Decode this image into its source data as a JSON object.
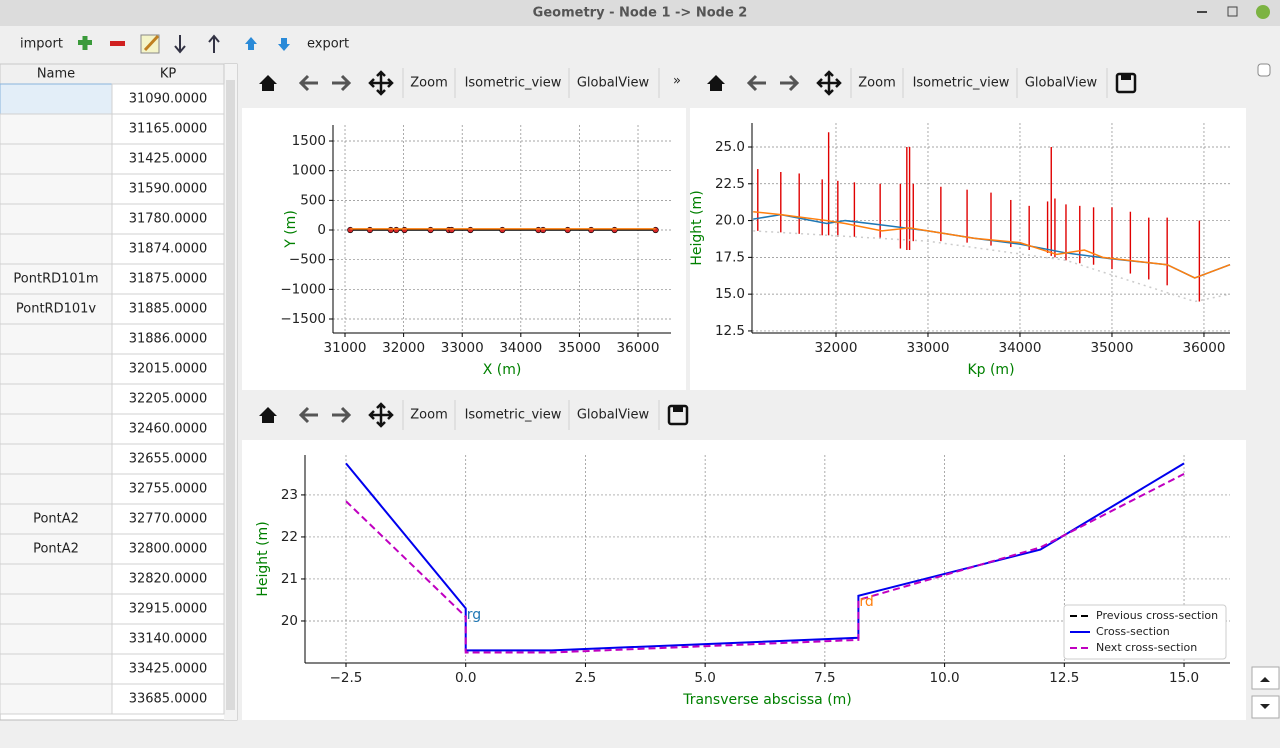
{
  "window": {
    "title": "Geometry - Node 1 -> Node 2"
  },
  "toolbar": {
    "import": "import",
    "export": "export"
  },
  "table": {
    "headers": [
      "Name",
      "KP"
    ],
    "rows": [
      [
        null,
        "31090.0000"
      ],
      [
        null,
        "31165.0000"
      ],
      [
        null,
        "31425.0000"
      ],
      [
        null,
        "31590.0000"
      ],
      [
        null,
        "31780.0000"
      ],
      [
        null,
        "31874.0000"
      ],
      [
        "PontRD101m",
        "31875.0000"
      ],
      [
        "PontRD101v",
        "31885.0000"
      ],
      [
        null,
        "31886.0000"
      ],
      [
        null,
        "32015.0000"
      ],
      [
        null,
        "32205.0000"
      ],
      [
        null,
        "32460.0000"
      ],
      [
        null,
        "32655.0000"
      ],
      [
        null,
        "32755.0000"
      ],
      [
        "PontA2",
        "32770.0000"
      ],
      [
        "PontA2",
        "32800.0000"
      ],
      [
        null,
        "32820.0000"
      ],
      [
        null,
        "32915.0000"
      ],
      [
        null,
        "33140.0000"
      ],
      [
        null,
        "33425.0000"
      ],
      [
        null,
        "33685.0000"
      ]
    ]
  },
  "plot_toolbar": {
    "zoom": "Zoom",
    "isometric_view": "Isometric_view",
    "global_view": "GlobalView",
    "overflow": "»"
  },
  "charts": [
    {
      "type": "line",
      "x_label": "X (m)",
      "y_label": "Y (m)",
      "xlim": [
        30795,
        36563
      ],
      "xticks": [
        31000,
        32000,
        33000,
        34000,
        35000,
        36000
      ],
      "ylim": [
        -1736,
        1770
      ],
      "yticks": [
        {
          "value": -1500,
          "label": "−1500"
        },
        {
          "value": -1000,
          "label": "−1000"
        },
        {
          "value": -500,
          "label": "−500"
        },
        0,
        500,
        1000,
        1500
      ],
      "grid": true,
      "series": [
        {
          "color": "#000000",
          "marker_color": "#d62728",
          "x": [
            31090,
            31425,
            31780,
            31875,
            32015,
            32460,
            32770,
            32820,
            33140,
            33685,
            34300,
            34380,
            34800,
            35200,
            35600,
            36300
          ],
          "values": [
            0,
            0,
            0,
            0,
            0,
            0,
            0,
            0,
            0,
            0,
            0,
            0,
            0,
            0,
            0,
            0
          ]
        },
        {
          "color": "#ff7f0e",
          "x": [
            31090,
            36300
          ],
          "values": [
            20,
            20
          ]
        }
      ]
    },
    {
      "type": "line",
      "x_label": "Kp (m)",
      "y_label": "Height (m)",
      "xlim": [
        31087,
        36283
      ],
      "xticks": [
        32000,
        33000,
        34000,
        35000,
        36000
      ],
      "ylim": [
        12.36,
        26.63
      ],
      "yticks": [
        12.5,
        {
          "value": 15,
          "label": "15.0"
        },
        17.5,
        {
          "value": 20,
          "label": "20.0"
        },
        22.5,
        {
          "value": 25,
          "label": "25.0"
        }
      ],
      "grid": true,
      "series": [
        {
          "color": "#1f77b4",
          "x": [
            31100,
            31400,
            31900,
            32100,
            32500,
            33000,
            33500,
            34000,
            34500,
            35000,
            35600,
            35900,
            36283
          ],
          "values": [
            20.1,
            20.4,
            19.8,
            20.0,
            19.7,
            19.3,
            18.8,
            18.4,
            17.8,
            17.4,
            17.0,
            16.1,
            17.0
          ]
        },
        {
          "color": "#ff7f0e",
          "x": [
            31100,
            31400,
            31900,
            32100,
            32500,
            32800,
            33000,
            33500,
            34000,
            34400,
            34700,
            34900,
            35600,
            35900,
            36283
          ],
          "values": [
            20.6,
            20.4,
            20.0,
            19.8,
            19.3,
            19.5,
            19.3,
            18.8,
            18.5,
            17.7,
            18.0,
            17.5,
            17.0,
            16.1,
            17.0
          ]
        },
        {
          "color": "#cccccc",
          "style": "dotted",
          "x": [
            31100,
            33000,
            34500,
            35900,
            36283
          ],
          "values": [
            19.3,
            18.6,
            17.3,
            14.5,
            15.0
          ]
        }
      ],
      "ranges": {
        "color": "#e00000",
        "x": [
          31150,
          31400,
          31600,
          31850,
          31920,
          32020,
          32200,
          32480,
          32700,
          32770,
          32800,
          32840,
          33140,
          33425,
          33685,
          33900,
          34100,
          34300,
          34340,
          34380,
          34500,
          34650,
          34800,
          35000,
          35200,
          35400,
          35600,
          35950
        ],
        "low": [
          19.3,
          19.2,
          19.1,
          19.0,
          19.0,
          18.9,
          18.9,
          18.8,
          18.1,
          18.0,
          18.0,
          18.6,
          18.6,
          18.5,
          18.3,
          18.2,
          18.0,
          17.8,
          17.6,
          17.5,
          17.3,
          17.1,
          17.0,
          16.7,
          16.4,
          16.0,
          15.6,
          14.5
        ],
        "high": [
          23.5,
          23.3,
          23.2,
          22.8,
          26.0,
          22.7,
          22.6,
          22.5,
          22.5,
          25.0,
          25.0,
          22.5,
          22.3,
          22.1,
          21.9,
          21.4,
          21.0,
          21.3,
          25.0,
          21.5,
          21.1,
          21.0,
          20.9,
          20.9,
          20.6,
          20.2,
          20.2,
          20.0
        ]
      }
    },
    {
      "type": "line",
      "x_label": "Transverse abscissa (m)",
      "y_label": "Height (m)",
      "xlim": [
        -3.356,
        15.96
      ],
      "xticks": [
        {
          "value": -2.5,
          "label": "−2.5"
        },
        {
          "value": 0,
          "label": "0.0"
        },
        2.5,
        {
          "value": 5,
          "label": "5.0"
        },
        7.5,
        {
          "value": 10,
          "label": "10.0"
        },
        12.5,
        {
          "value": 15,
          "label": "15.0"
        }
      ],
      "ylim": [
        19.0,
        23.95
      ],
      "yticks": [
        20,
        21,
        22,
        23
      ],
      "grid": true,
      "legend": "lower right",
      "series": [
        {
          "name": "Previous cross-section",
          "color": "#000000",
          "style": "dashed",
          "x": [],
          "values": []
        },
        {
          "name": "Cross-section",
          "color": "#0000ee",
          "x": [
            -2.5,
            0,
            0,
            0,
            1.8,
            8.2,
            8.2,
            12,
            15
          ],
          "values": [
            23.75,
            20.3,
            19.3,
            19.3,
            19.3,
            19.6,
            20.6,
            21.7,
            23.75
          ]
        },
        {
          "name": "Next cross-section",
          "color": "#c000c0",
          "style": "dashed",
          "x": [
            -2.5,
            0,
            0,
            1.8,
            8.2,
            8.2,
            12,
            15
          ],
          "values": [
            22.85,
            20.1,
            19.25,
            19.25,
            19.55,
            20.5,
            21.75,
            23.5
          ]
        }
      ],
      "annotations": [
        {
          "text": "rg",
          "x": 0,
          "y": 20.1,
          "color": "#1f77b4"
        },
        {
          "text": "rd",
          "x": 8.2,
          "y": 20.4,
          "color": "#ff7f0e"
        }
      ]
    }
  ]
}
